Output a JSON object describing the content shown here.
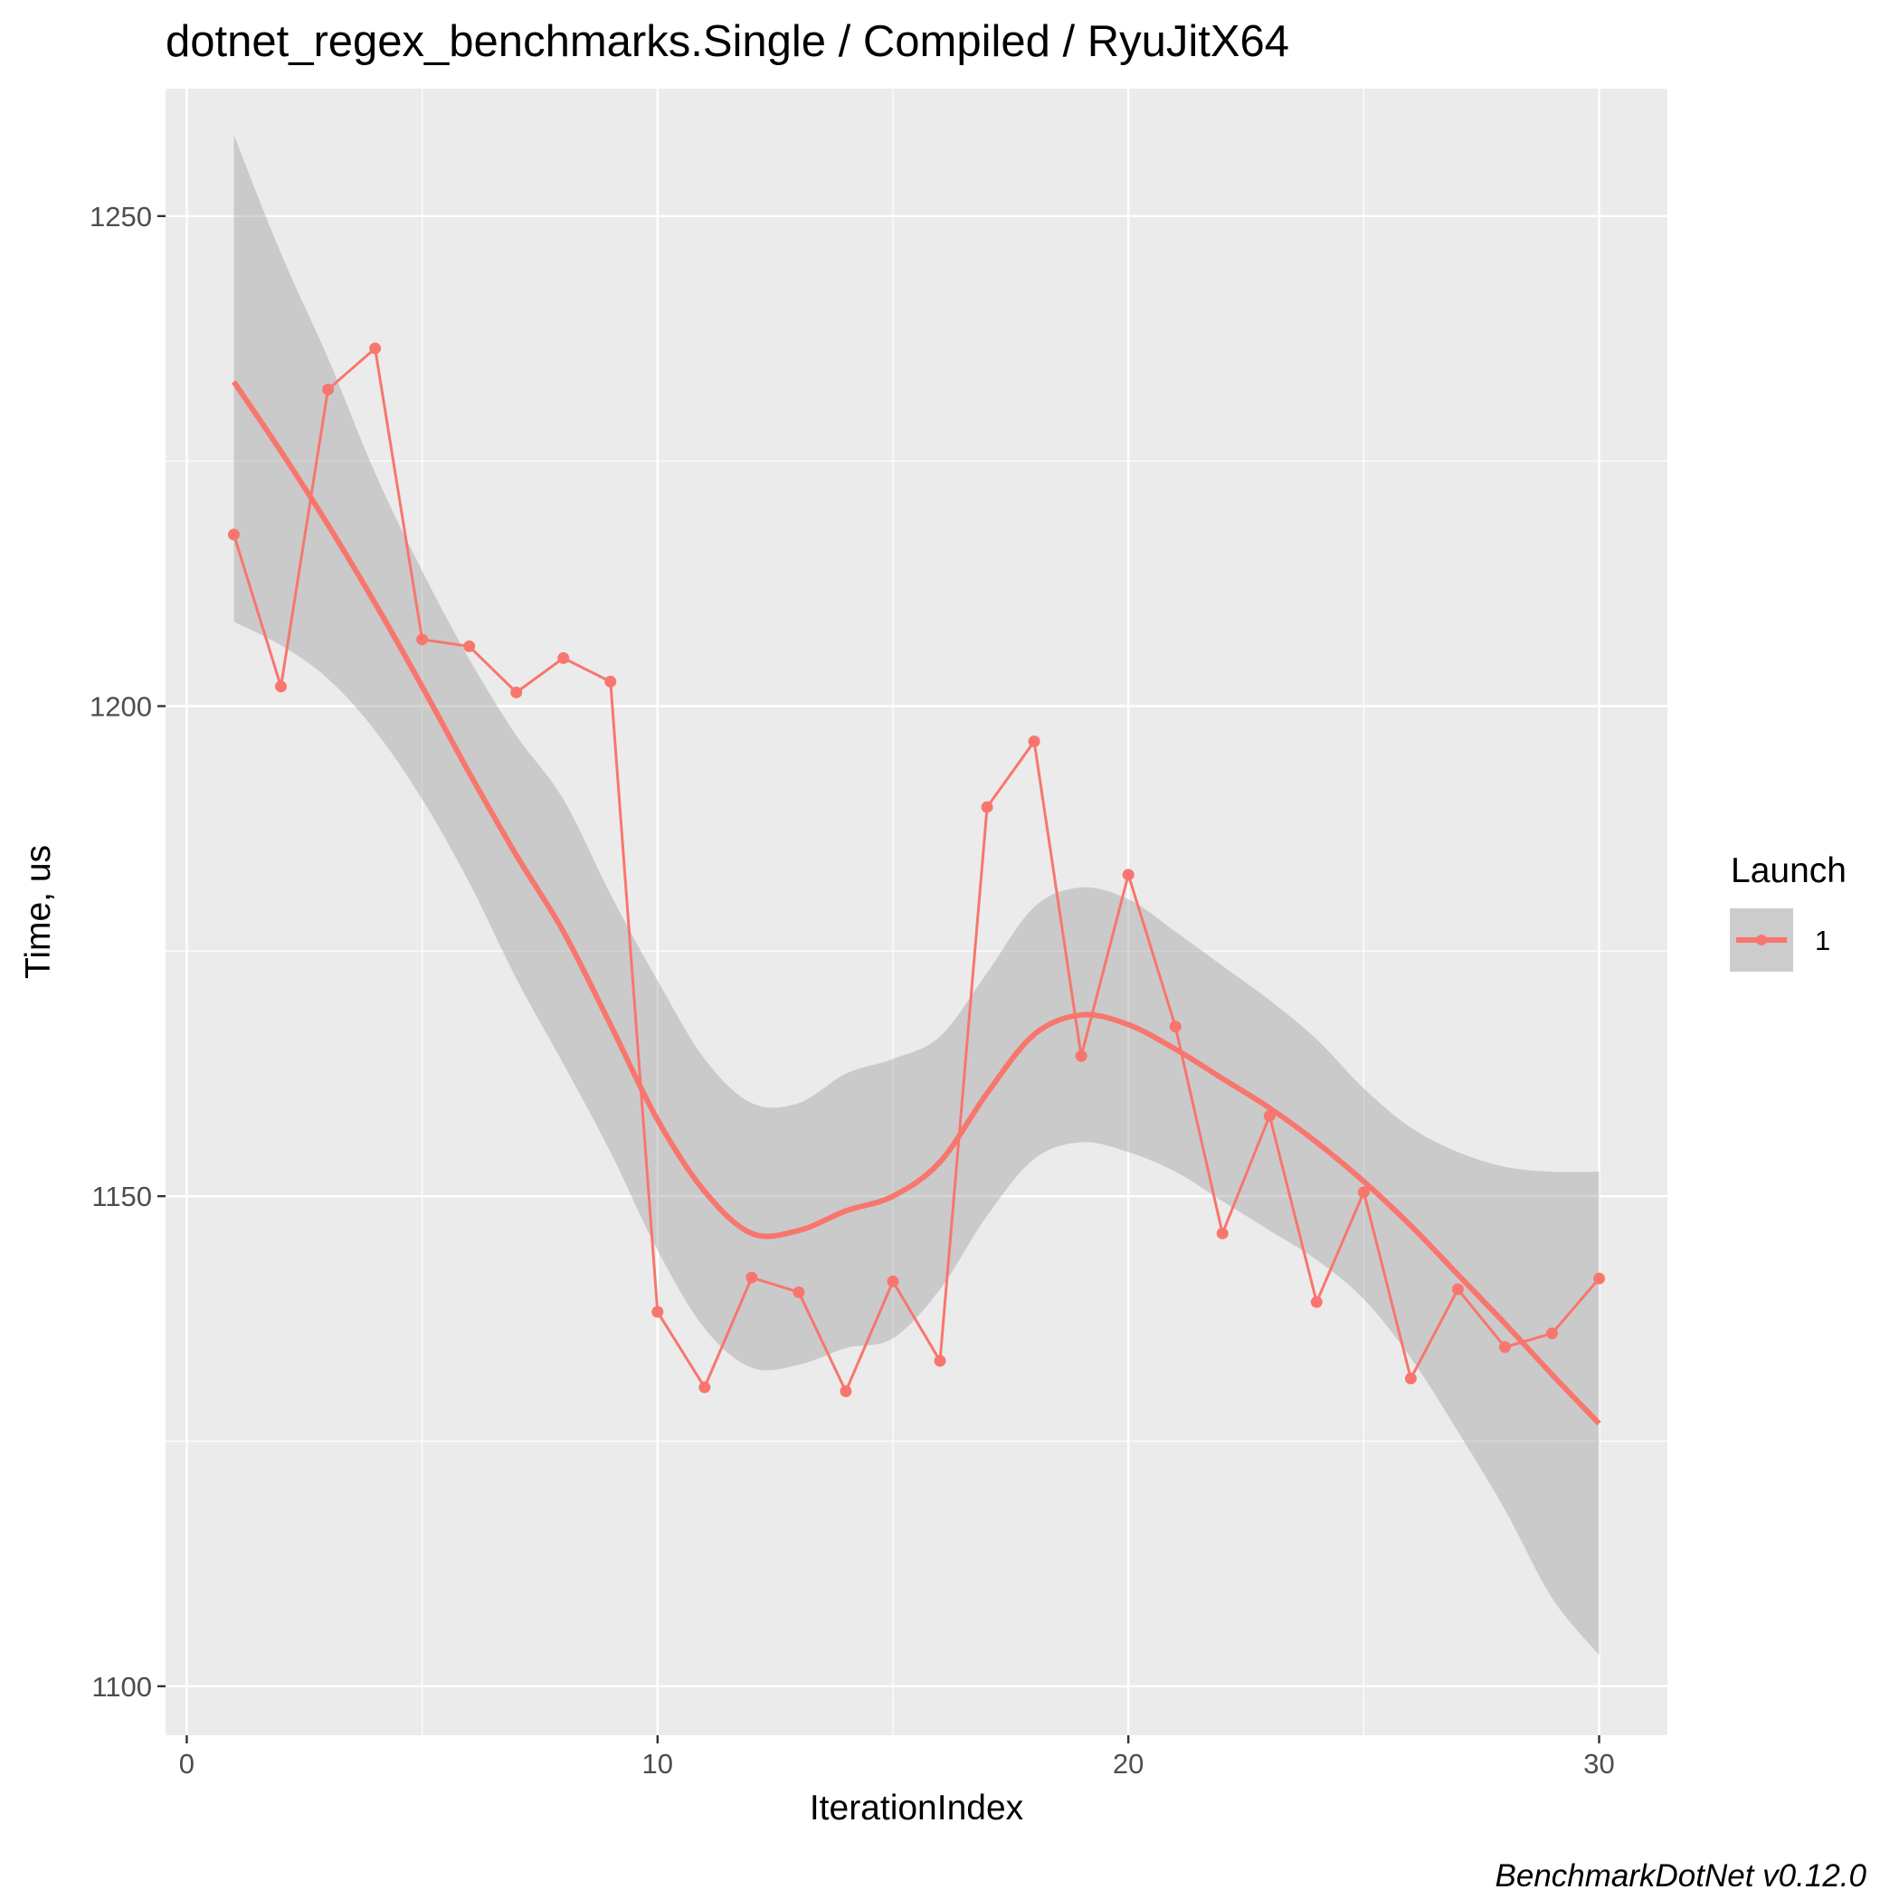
{
  "chart_data": {
    "type": "line",
    "title": "dotnet_regex_benchmarks.Single / Compiled / RyuJitX64",
    "xlabel": "IterationIndex",
    "ylabel": "Time, us",
    "caption": "BenchmarkDotNet v0.12.0",
    "xlim": [
      -0.45,
      31.45
    ],
    "ylim": [
      1095,
      1263
    ],
    "x_ticks": [
      0,
      10,
      20,
      30
    ],
    "x_tick_labels": [
      "0",
      "10",
      "20",
      "30"
    ],
    "y_ticks": [
      1100,
      1150,
      1200,
      1250
    ],
    "y_tick_labels": [
      "1100",
      "1150",
      "1200",
      "1250"
    ],
    "grid": true,
    "legend": {
      "title": "Launch",
      "placement": "right",
      "entries": [
        "1"
      ]
    },
    "colors": {
      "series": "#f8766d",
      "panel_background": "#ebebeb",
      "ribbon": "#cccccc",
      "grid": "#ffffff"
    },
    "series": [
      {
        "name": "1",
        "x": [
          1,
          2,
          3,
          4,
          5,
          6,
          7,
          8,
          9,
          10,
          11,
          12,
          13,
          14,
          15,
          16,
          17,
          18,
          19,
          20,
          21,
          22,
          23,
          24,
          25,
          26,
          27,
          28,
          29,
          30
        ],
        "y": [
          1217.5,
          1202.0,
          1232.3,
          1236.5,
          1206.8,
          1206.1,
          1201.4,
          1204.9,
          1202.5,
          1138.2,
          1130.5,
          1141.7,
          1140.2,
          1130.1,
          1141.3,
          1133.2,
          1189.7,
          1196.4,
          1164.3,
          1182.8,
          1167.3,
          1146.2,
          1158.2,
          1139.2,
          1150.4,
          1131.4,
          1140.5,
          1134.6,
          1136.0,
          1141.6
        ]
      }
    ],
    "smooth": {
      "x": [
        1,
        2,
        3,
        4,
        5,
        6,
        7,
        8,
        9,
        10,
        11,
        12,
        13,
        14,
        15,
        16,
        17,
        18,
        19,
        20,
        21,
        22,
        23,
        24,
        25,
        26,
        27,
        28,
        29,
        30
      ],
      "y": [
        1233.1,
        1226.0,
        1218.5,
        1210.5,
        1202.0,
        1193.2,
        1184.8,
        1177.0,
        1167.5,
        1157.8,
        1150.5,
        1146.2,
        1146.5,
        1148.5,
        1150.0,
        1153.5,
        1160.5,
        1166.5,
        1168.5,
        1167.5,
        1165.0,
        1162.0,
        1159.0,
        1155.5,
        1151.5,
        1147.0,
        1142.0,
        1137.0,
        1131.8,
        1126.8
      ],
      "lower": [
        1208.6,
        1206.2,
        1202.8,
        1197.5,
        1190.5,
        1182.0,
        1172.2,
        1163.5,
        1154.5,
        1144.5,
        1136.5,
        1132.5,
        1132.8,
        1134.5,
        1135.5,
        1140.5,
        1148.0,
        1153.8,
        1155.5,
        1154.5,
        1152.5,
        1149.5,
        1146.5,
        1143.5,
        1139.5,
        1133.5,
        1126.0,
        1118.0,
        1109.0,
        1103.2
      ],
      "upper": [
        1258.3,
        1246.2,
        1235.5,
        1223.8,
        1213.8,
        1204.8,
        1197.0,
        1190.5,
        1180.8,
        1172.0,
        1164.0,
        1159.5,
        1159.5,
        1162.5,
        1164.0,
        1166.3,
        1172.8,
        1179.5,
        1181.5,
        1180.3,
        1177.0,
        1173.5,
        1170.0,
        1166.0,
        1161.0,
        1157.0,
        1154.5,
        1153.0,
        1152.5,
        1152.5
      ]
    }
  }
}
